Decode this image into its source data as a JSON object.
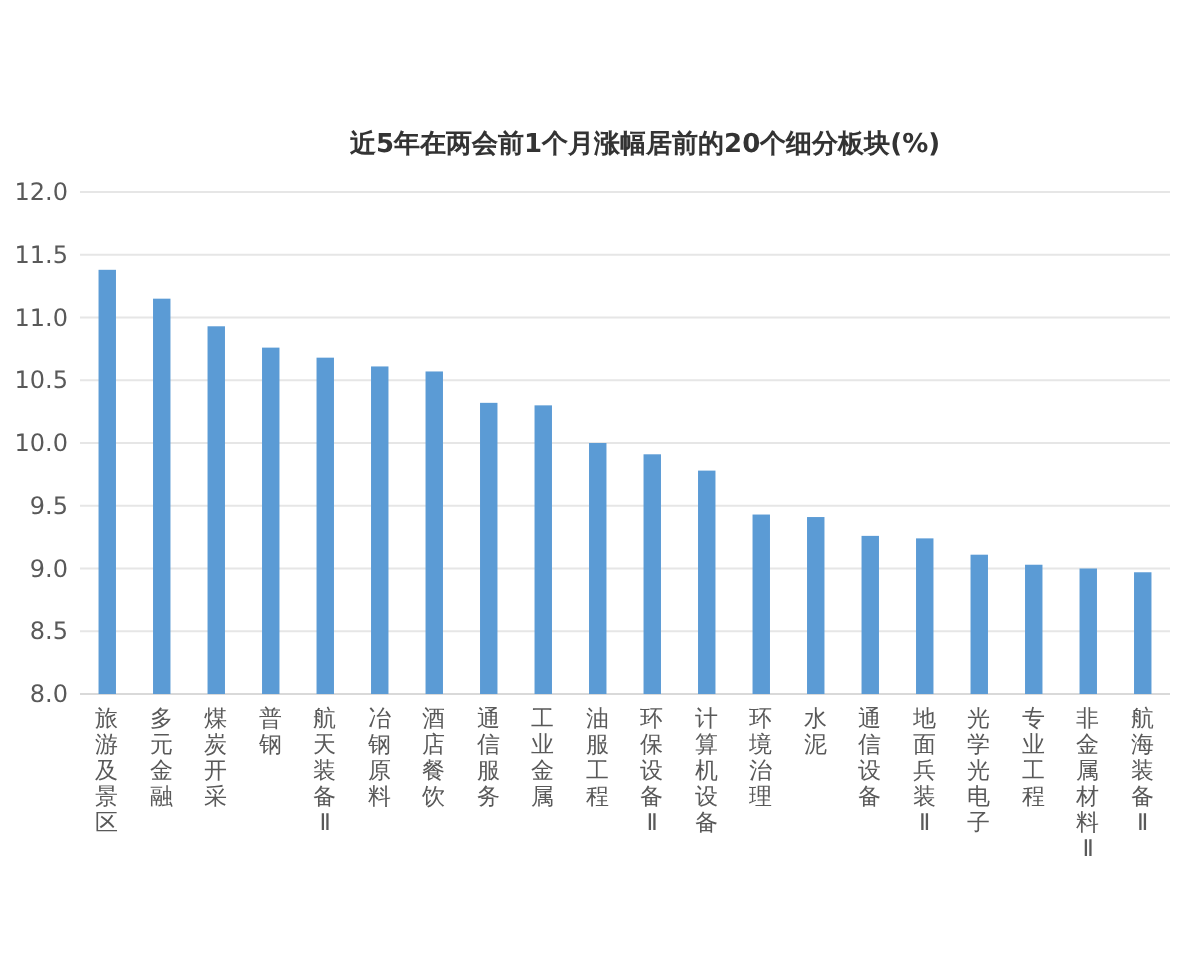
{
  "chart_data": {
    "type": "bar",
    "title": "近5年在两会前1个月涨幅居前的20个细分板块(%)",
    "categories": [
      "旅游及景区",
      "多元金融",
      "煤炭开采",
      "普钢",
      "航天装备Ⅱ",
      "冶钢原料",
      "酒店餐饮",
      "通信服务",
      "工业金属",
      "油服工程",
      "环保设备Ⅱ",
      "计算机设备",
      "环境治理",
      "水泥",
      "通信设备",
      "地面兵装Ⅱ",
      "光学光电子",
      "专业工程",
      "非金属材料Ⅱ",
      "航海装备Ⅱ"
    ],
    "values": [
      11.38,
      11.15,
      10.93,
      10.76,
      10.68,
      10.61,
      10.57,
      10.32,
      10.3,
      10.0,
      9.91,
      9.78,
      9.43,
      9.41,
      9.26,
      9.24,
      9.11,
      9.03,
      9.0,
      8.97
    ],
    "color": "#5b9bd5",
    "ylim": [
      8.0,
      12.0
    ],
    "yticks": [
      {
        "value": 8,
        "label": "8.0"
      },
      {
        "value": 8.5,
        "label": "8.5"
      },
      {
        "value": 9,
        "label": "9.0"
      },
      {
        "value": 9.5,
        "label": "9.5"
      },
      {
        "value": 10,
        "label": "10.0"
      },
      {
        "value": 10.5,
        "label": "10.5"
      },
      {
        "value": 11,
        "label": "11.0"
      },
      {
        "value": 11.5,
        "label": "11.5"
      },
      {
        "value": 12,
        "label": "12.0"
      }
    ],
    "grid": "y"
  }
}
